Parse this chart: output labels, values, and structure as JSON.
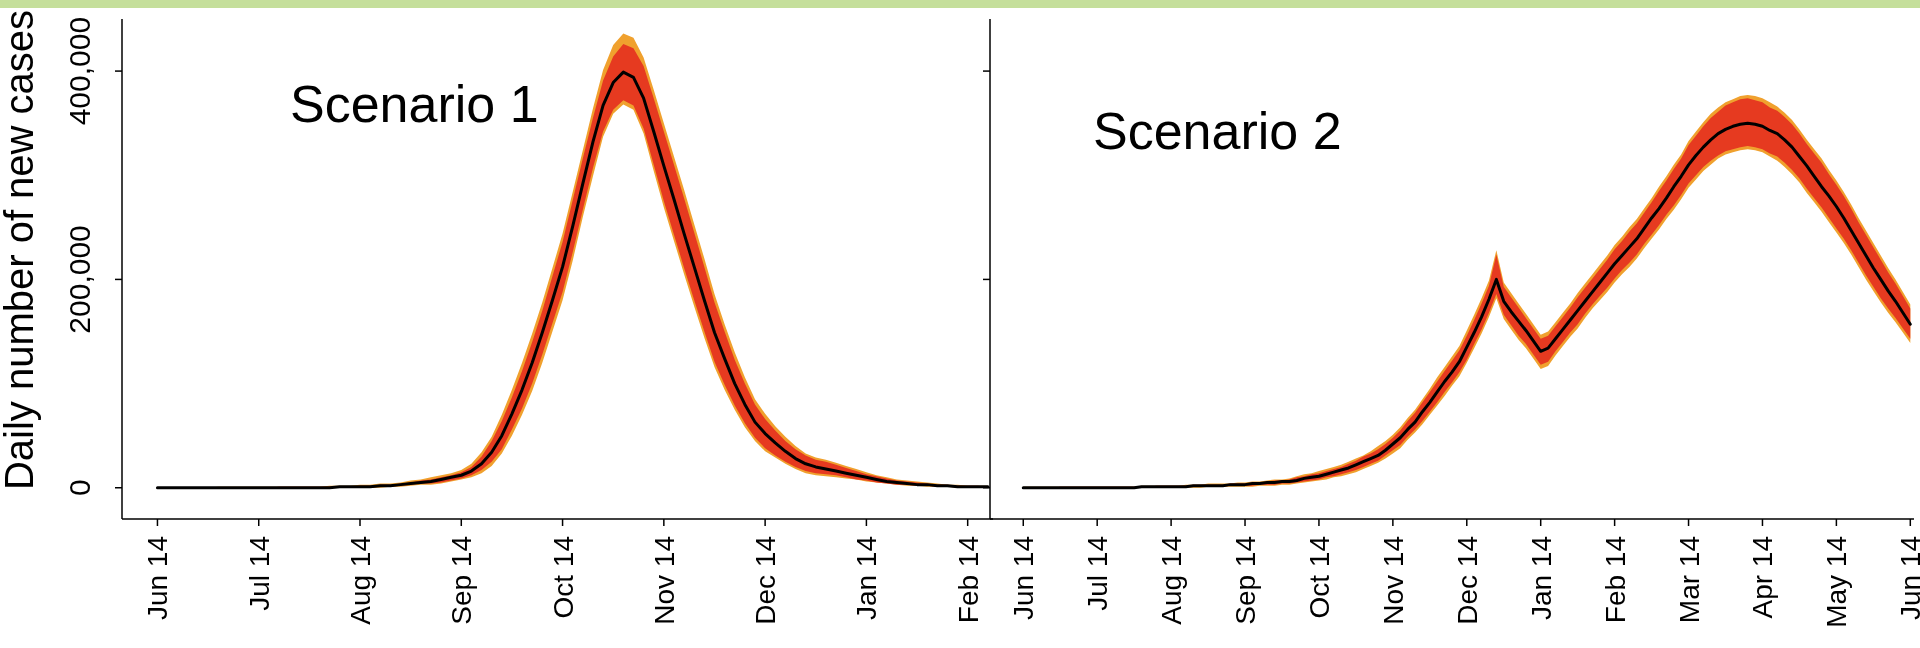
{
  "chart_data": [
    {
      "type": "line",
      "title": "Scenario 1",
      "ylabel": "Daily number of new cases",
      "categories": [
        null,
        null,
        null,
        "Jun 14",
        null,
        null,
        null,
        null,
        null,
        null,
        null,
        null,
        null,
        "Jul 14",
        null,
        null,
        null,
        null,
        null,
        null,
        null,
        null,
        null,
        "Aug 14",
        null,
        null,
        null,
        null,
        null,
        null,
        null,
        null,
        null,
        "Sep 14",
        null,
        null,
        null,
        null,
        null,
        null,
        null,
        null,
        null,
        "Oct 14",
        null,
        null,
        null,
        null,
        null,
        null,
        null,
        null,
        null,
        "Nov 14",
        null,
        null,
        null,
        null,
        null,
        null,
        null,
        null,
        null,
        "Dec 14",
        null,
        null,
        null,
        null,
        null,
        null,
        null,
        null,
        null,
        "Jan 14",
        null,
        null,
        null,
        null,
        null,
        null,
        null,
        null,
        null,
        "Feb 14",
        null,
        null
      ],
      "series": [
        {
          "color": "#f0a12e",
          "values": [
            null,
            null,
            null,
            null,
            null,
            null,
            null,
            null,
            null,
            null,
            null,
            null,
            null,
            null,
            null,
            null,
            null,
            null,
            null,
            null,
            null,
            null,
            null,
            null,
            null,
            null,
            null,
            null,
            null,
            null,
            null,
            null,
            null,
            null,
            null,
            null,
            null,
            null,
            null,
            null,
            null,
            null,
            null,
            null,
            null,
            null,
            null,
            null,
            null,
            null,
            null,
            null,
            null,
            null,
            null,
            null,
            null,
            null,
            null,
            null,
            null,
            null,
            null,
            null,
            null,
            null,
            null,
            null,
            null,
            null,
            null,
            null,
            null,
            null,
            null,
            null,
            null,
            null,
            null,
            null,
            null,
            null,
            null,
            null,
            null,
            null
          ],
          "lower": [
            null,
            null,
            null,
            0,
            0,
            0,
            0,
            0,
            0,
            0,
            0,
            0,
            0,
            0,
            0,
            0,
            0,
            0,
            0,
            0,
            0,
            0,
            0,
            0,
            0,
            0,
            1000,
            1000,
            2000,
            3000,
            3000,
            4000,
            6000,
            8000,
            10000,
            14000,
            21000,
            33000,
            50000,
            70000,
            93000,
            120000,
            150000,
            180000,
            218000,
            260000,
            299000,
            337000,
            359000,
            368000,
            363000,
            340000,
            304000,
            269000,
            237000,
            205000,
            174000,
            144000,
            116000,
            94000,
            75000,
            58000,
            45000,
            35000,
            29000,
            23000,
            18000,
            14000,
            12000,
            11000,
            10000,
            9000,
            8000,
            6000,
            5000,
            4000,
            3000,
            2000,
            2000,
            1000,
            1000,
            1000,
            0,
            0,
            0,
            0
          ],
          "upper": [
            null,
            null,
            null,
            0,
            0,
            0,
            0,
            0,
            0,
            1000,
            1000,
            1000,
            1000,
            1000,
            1000,
            1000,
            1000,
            1000,
            1000,
            1000,
            2000,
            2000,
            2000,
            3000,
            3000,
            4000,
            4000,
            5000,
            7000,
            8000,
            10000,
            12000,
            14000,
            17000,
            23000,
            34000,
            49000,
            70000,
            94000,
            120000,
            148000,
            178000,
            211000,
            244000,
            284000,
            324000,
            364000,
            401000,
            425000,
            436000,
            432000,
            413000,
            382000,
            350000,
            318000,
            286000,
            253000,
            220000,
            186000,
            157000,
            130000,
            106000,
            85000,
            71000,
            59000,
            49000,
            40000,
            33000,
            29000,
            27000,
            24000,
            21000,
            18000,
            15000,
            12000,
            10000,
            8000,
            7000,
            6000,
            5000,
            4000,
            3000,
            3000,
            2000,
            2000,
            2000
          ]
        },
        {
          "color": "#e63a20",
          "values": [
            null,
            null,
            null,
            null,
            null,
            null,
            null,
            null,
            null,
            null,
            null,
            null,
            null,
            null,
            null,
            null,
            null,
            null,
            null,
            null,
            null,
            null,
            null,
            null,
            null,
            null,
            null,
            null,
            null,
            null,
            null,
            null,
            null,
            null,
            null,
            null,
            null,
            null,
            null,
            null,
            null,
            null,
            null,
            null,
            null,
            null,
            null,
            null,
            null,
            null,
            null,
            null,
            null,
            null,
            null,
            null,
            null,
            null,
            null,
            null,
            null,
            null,
            null,
            null,
            null,
            null,
            null,
            null,
            null,
            null,
            null,
            null,
            null,
            null,
            null,
            null,
            null,
            null,
            null,
            null,
            null,
            null,
            null,
            null,
            null,
            null
          ],
          "lower": [
            null,
            null,
            null,
            0,
            0,
            0,
            0,
            0,
            0,
            0,
            0,
            0,
            0,
            0,
            0,
            0,
            0,
            0,
            0,
            0,
            0,
            0,
            0,
            0,
            0,
            1000,
            1000,
            2000,
            3000,
            4000,
            4000,
            5000,
            7000,
            9000,
            12000,
            17000,
            25000,
            37000,
            56000,
            76000,
            100000,
            128000,
            158000,
            188000,
            226000,
            267000,
            307000,
            342000,
            363000,
            372000,
            367000,
            345000,
            310000,
            275000,
            243000,
            211000,
            180000,
            150000,
            121000,
            99000,
            79000,
            62000,
            48000,
            38000,
            31000,
            25000,
            20000,
            16000,
            14000,
            13000,
            12000,
            10000,
            8000,
            7000,
            5000,
            4000,
            3000,
            3000,
            2000,
            2000,
            1000,
            1000,
            1000,
            0,
            0,
            0
          ],
          "upper": [
            null,
            null,
            null,
            0,
            0,
            0,
            0,
            0,
            0,
            0,
            0,
            0,
            0,
            0,
            0,
            1000,
            1000,
            1000,
            1000,
            1000,
            1000,
            1000,
            1000,
            2000,
            2000,
            3000,
            3000,
            4000,
            5000,
            7000,
            8000,
            10000,
            12000,
            15000,
            20000,
            30000,
            45000,
            64000,
            87000,
            112000,
            140000,
            170000,
            203000,
            236000,
            276000,
            316000,
            355000,
            391000,
            414000,
            426000,
            422000,
            405000,
            374000,
            342000,
            310000,
            278000,
            245000,
            212000,
            178000,
            150000,
            123000,
            100000,
            80000,
            66000,
            55000,
            45000,
            37000,
            31000,
            27000,
            25000,
            22000,
            19000,
            16000,
            13000,
            11000,
            9000,
            7000,
            6000,
            5000,
            4000,
            3000,
            3000,
            2000,
            2000,
            2000,
            1000
          ]
        },
        {
          "color": "#000000",
          "values": [
            null,
            null,
            null,
            0,
            0,
            0,
            0,
            0,
            0,
            0,
            0,
            0,
            0,
            0,
            0,
            0,
            0,
            0,
            0,
            0,
            0,
            1000,
            1000,
            1000,
            1000,
            2000,
            2000,
            3000,
            4000,
            5000,
            6000,
            8000,
            10000,
            12000,
            16000,
            23000,
            34000,
            50000,
            71000,
            94000,
            120000,
            149000,
            180000,
            212000,
            251000,
            292000,
            332000,
            367000,
            389000,
            399000,
            394000,
            374000,
            342000,
            309000,
            277000,
            244000,
            212000,
            180000,
            149000,
            124000,
            100000,
            80000,
            63000,
            52000,
            43000,
            35000,
            28000,
            23000,
            20000,
            18000,
            16000,
            14000,
            12000,
            10000,
            8000,
            6000,
            5000,
            4000,
            3000,
            3000,
            2000,
            2000,
            1000,
            1000,
            1000,
            1000
          ]
        }
      ],
      "ylim": [
        -30000,
        450000
      ],
      "yticks": [
        0,
        {
          "value": 200000,
          "label": "200,000"
        },
        {
          "value": 400000,
          "label": "400,000"
        }
      ]
    },
    {
      "type": "line",
      "title": "Scenario 2",
      "categories": [
        null,
        null,
        null,
        null,
        "Jun 14",
        null,
        null,
        null,
        null,
        null,
        null,
        null,
        null,
        null,
        "Jul 14",
        null,
        null,
        null,
        null,
        null,
        null,
        null,
        null,
        null,
        "Aug 14",
        null,
        null,
        null,
        null,
        null,
        null,
        null,
        null,
        null,
        "Sep 14",
        null,
        null,
        null,
        null,
        null,
        null,
        null,
        null,
        null,
        "Oct 14",
        null,
        null,
        null,
        null,
        null,
        null,
        null,
        null,
        null,
        "Nov 14",
        null,
        null,
        null,
        null,
        null,
        null,
        null,
        null,
        null,
        "Dec 14",
        null,
        null,
        null,
        null,
        null,
        null,
        null,
        null,
        null,
        "Jan 14",
        null,
        null,
        null,
        null,
        null,
        null,
        null,
        null,
        null,
        "Feb 14",
        null,
        null,
        null,
        null,
        null,
        null,
        null,
        null,
        null,
        "Mar 14",
        null,
        null,
        null,
        null,
        null,
        null,
        null,
        null,
        null,
        "Apr 14",
        null,
        null,
        null,
        null,
        null,
        null,
        null,
        null,
        null,
        "May 14",
        null,
        null,
        null,
        null,
        null,
        null,
        null,
        null,
        null,
        "Jun 14"
      ],
      "series": [
        {
          "color": "#f0a12e",
          "values": [
            null,
            null,
            null,
            null,
            null,
            null,
            null,
            null,
            null,
            null,
            null,
            null,
            null,
            null,
            null,
            null,
            null,
            null,
            null,
            null,
            null,
            null,
            null,
            null,
            null,
            null,
            null,
            null,
            null,
            null,
            null,
            null,
            null,
            null,
            null,
            null,
            null,
            null,
            null,
            null,
            null,
            null,
            null,
            null,
            null,
            null,
            null,
            null,
            null,
            null,
            null,
            null,
            null,
            null,
            null,
            null,
            null,
            null,
            null,
            null,
            null,
            null,
            null,
            null,
            null,
            null,
            null,
            null,
            null,
            null,
            null,
            null,
            null,
            null,
            null,
            null,
            null,
            null,
            null,
            null,
            null,
            null,
            null,
            null,
            null,
            null,
            null,
            null,
            null,
            null,
            null,
            null,
            null,
            null,
            null,
            null,
            null,
            null,
            null,
            null,
            null,
            null,
            null,
            null,
            null,
            null,
            null,
            null,
            null,
            null,
            null,
            null,
            null,
            null,
            null,
            null,
            null,
            null,
            null,
            null,
            null,
            null,
            null,
            null,
            null
          ],
          "lower": [
            null,
            null,
            null,
            null,
            0,
            0,
            0,
            0,
            0,
            0,
            0,
            0,
            0,
            0,
            0,
            0,
            0,
            0,
            0,
            0,
            0,
            0,
            0,
            0,
            0,
            0,
            0,
            0,
            0,
            1000,
            1000,
            1000,
            1000,
            1000,
            1000,
            1000,
            2000,
            2000,
            2000,
            3000,
            3000,
            4000,
            5000,
            6000,
            7000,
            8000,
            10000,
            11000,
            13000,
            15000,
            18000,
            21000,
            24000,
            28000,
            33000,
            38000,
            46000,
            53000,
            61000,
            70000,
            79000,
            88000,
            98000,
            107000,
            120000,
            134000,
            148000,
            164000,
            182000,
            162000,
            152000,
            142000,
            134000,
            124000,
            114000,
            117000,
            127000,
            136000,
            145000,
            153000,
            163000,
            172000,
            180000,
            188000,
            197000,
            205000,
            212000,
            220000,
            230000,
            239000,
            248000,
            258000,
            267000,
            277000,
            288000,
            296000,
            304000,
            310000,
            316000,
            320000,
            322000,
            324000,
            325000,
            324000,
            322000,
            318000,
            314000,
            308000,
            301000,
            293000,
            283000,
            274000,
            265000,
            255000,
            245000,
            235000,
            224000,
            212000,
            200000,
            189000,
            178000,
            168000,
            159000,
            149000,
            139000
          ],
          "upper": [
            null,
            null,
            null,
            null,
            1000,
            1000,
            1000,
            1000,
            1000,
            1000,
            1000,
            1000,
            1000,
            1000,
            1000,
            1000,
            1000,
            1000,
            1000,
            1000,
            2000,
            2000,
            2000,
            2000,
            2000,
            2000,
            3000,
            3000,
            3000,
            4000,
            4000,
            4000,
            4000,
            5000,
            5000,
            6000,
            6000,
            7000,
            8000,
            8000,
            9000,
            11000,
            13000,
            14000,
            16000,
            18000,
            20000,
            22000,
            25000,
            28000,
            31000,
            35000,
            40000,
            45000,
            51000,
            58000,
            67000,
            75000,
            85000,
            95000,
            106000,
            116000,
            126000,
            136000,
            151000,
            166000,
            182000,
            199000,
            228000,
            197000,
            187000,
            177000,
            167000,
            157000,
            147000,
            150000,
            159000,
            168000,
            177000,
            187000,
            196000,
            205000,
            214000,
            223000,
            233000,
            241000,
            250000,
            258000,
            268000,
            278000,
            289000,
            299000,
            310000,
            320000,
            333000,
            342000,
            351000,
            359000,
            365000,
            370000,
            373000,
            376000,
            377000,
            376000,
            374000,
            370000,
            366000,
            360000,
            353000,
            344000,
            334000,
            325000,
            316000,
            305000,
            295000,
            284000,
            272000,
            259000,
            247000,
            235000,
            223000,
            211000,
            200000,
            188000,
            176000
          ]
        },
        {
          "color": "#e63a20",
          "values": [
            null,
            null,
            null,
            null,
            null,
            null,
            null,
            null,
            null,
            null,
            null,
            null,
            null,
            null,
            null,
            null,
            null,
            null,
            null,
            null,
            null,
            null,
            null,
            null,
            null,
            null,
            null,
            null,
            null,
            null,
            null,
            null,
            null,
            null,
            null,
            null,
            null,
            null,
            null,
            null,
            null,
            null,
            null,
            null,
            null,
            null,
            null,
            null,
            null,
            null,
            null,
            null,
            null,
            null,
            null,
            null,
            null,
            null,
            null,
            null,
            null,
            null,
            null,
            null,
            null,
            null,
            null,
            null,
            null,
            null,
            null,
            null,
            null,
            null,
            null,
            null,
            null,
            null,
            null,
            null,
            null,
            null,
            null,
            null,
            null,
            null,
            null,
            null,
            null,
            null,
            null,
            null,
            null,
            null,
            null,
            null,
            null,
            null,
            null,
            null,
            null,
            null,
            null,
            null,
            null,
            null,
            null,
            null,
            null,
            null,
            null,
            null,
            null,
            null,
            null,
            null,
            null,
            null,
            null,
            null,
            null,
            null,
            null,
            null,
            null
          ],
          "lower": [
            null,
            null,
            null,
            null,
            0,
            0,
            0,
            0,
            0,
            0,
            0,
            0,
            0,
            0,
            0,
            0,
            0,
            0,
            0,
            0,
            0,
            0,
            0,
            0,
            0,
            0,
            1000,
            1000,
            1000,
            1000,
            1000,
            1000,
            2000,
            2000,
            2000,
            2000,
            3000,
            3000,
            3000,
            4000,
            4000,
            5000,
            6000,
            7000,
            8000,
            10000,
            11000,
            13000,
            15000,
            17000,
            20000,
            23000,
            26000,
            31000,
            36000,
            41000,
            49000,
            56000,
            64000,
            73000,
            82000,
            92000,
            101000,
            111000,
            123000,
            138000,
            152000,
            168000,
            186000,
            166000,
            156000,
            146000,
            138000,
            128000,
            118000,
            121000,
            131000,
            140000,
            149000,
            157000,
            167000,
            176000,
            184000,
            192000,
            201000,
            209000,
            216000,
            224000,
            234000,
            243000,
            252000,
            262000,
            271000,
            281000,
            292000,
            300000,
            308000,
            314000,
            319000,
            323000,
            325000,
            327000,
            328000,
            327000,
            325000,
            321000,
            318000,
            312000,
            305000,
            297000,
            287000,
            278000,
            269000,
            259000,
            249000,
            239000,
            228000,
            216000,
            204000,
            193000,
            182000,
            172000,
            163000,
            153000,
            143000
          ],
          "upper": [
            null,
            null,
            null,
            null,
            0,
            0,
            0,
            0,
            0,
            1000,
            1000,
            1000,
            1000,
            1000,
            1000,
            1000,
            1000,
            1000,
            1000,
            1000,
            1000,
            1000,
            2000,
            2000,
            2000,
            2000,
            2000,
            3000,
            3000,
            3000,
            3000,
            3000,
            4000,
            4000,
            4000,
            5000,
            5000,
            6000,
            7000,
            7000,
            8000,
            10000,
            11000,
            13000,
            14000,
            16000,
            18000,
            20000,
            23000,
            26000,
            30000,
            33000,
            37000,
            42000,
            48000,
            55000,
            64000,
            72000,
            82000,
            92000,
            102000,
            112000,
            122000,
            132000,
            146000,
            161000,
            177000,
            194000,
            224000,
            193000,
            183000,
            173000,
            163000,
            153000,
            143000,
            146000,
            155000,
            164000,
            173000,
            183000,
            192000,
            201000,
            210000,
            219000,
            229000,
            237000,
            246000,
            254000,
            264000,
            274000,
            285000,
            295000,
            306000,
            316000,
            329000,
            338000,
            347000,
            355000,
            361000,
            367000,
            370000,
            373000,
            374000,
            372000,
            370000,
            365000,
            362000,
            356000,
            349000,
            340000,
            330000,
            321000,
            312000,
            301000,
            291000,
            280000,
            268000,
            255000,
            243000,
            231000,
            219000,
            207000,
            196000,
            184000,
            172000
          ]
        },
        {
          "color": "#000000",
          "values": [
            null,
            null,
            null,
            null,
            0,
            0,
            0,
            0,
            0,
            0,
            0,
            0,
            0,
            0,
            0,
            0,
            0,
            0,
            0,
            0,
            1000,
            1000,
            1000,
            1000,
            1000,
            1000,
            1000,
            2000,
            2000,
            2000,
            2000,
            2000,
            3000,
            3000,
            3000,
            4000,
            4000,
            5000,
            5000,
            6000,
            6000,
            7000,
            9000,
            10000,
            11000,
            13000,
            15000,
            17000,
            19000,
            22000,
            25000,
            28000,
            31000,
            36000,
            42000,
            48000,
            56000,
            63000,
            73000,
            82000,
            92000,
            102000,
            111000,
            121000,
            135000,
            149000,
            164000,
            181000,
            200000,
            179000,
            169000,
            160000,
            151000,
            141000,
            131000,
            134000,
            143000,
            152000,
            161000,
            170000,
            179000,
            188000,
            197000,
            206000,
            215000,
            223000,
            231000,
            239000,
            249000,
            259000,
            268000,
            278000,
            289000,
            299000,
            310000,
            319000,
            327000,
            334000,
            340000,
            344000,
            347000,
            349000,
            350000,
            349000,
            347000,
            343000,
            340000,
            334000,
            327000,
            318000,
            309000,
            299000,
            289000,
            280000,
            270000,
            259000,
            247000,
            235000,
            223000,
            211000,
            200000,
            189000,
            179000,
            168000,
            157000
          ]
        }
      ],
      "ylim": [
        -30000,
        450000
      ],
      "yticks": [
        0,
        200000,
        400000
      ],
      "tick_labels": "x"
    }
  ]
}
